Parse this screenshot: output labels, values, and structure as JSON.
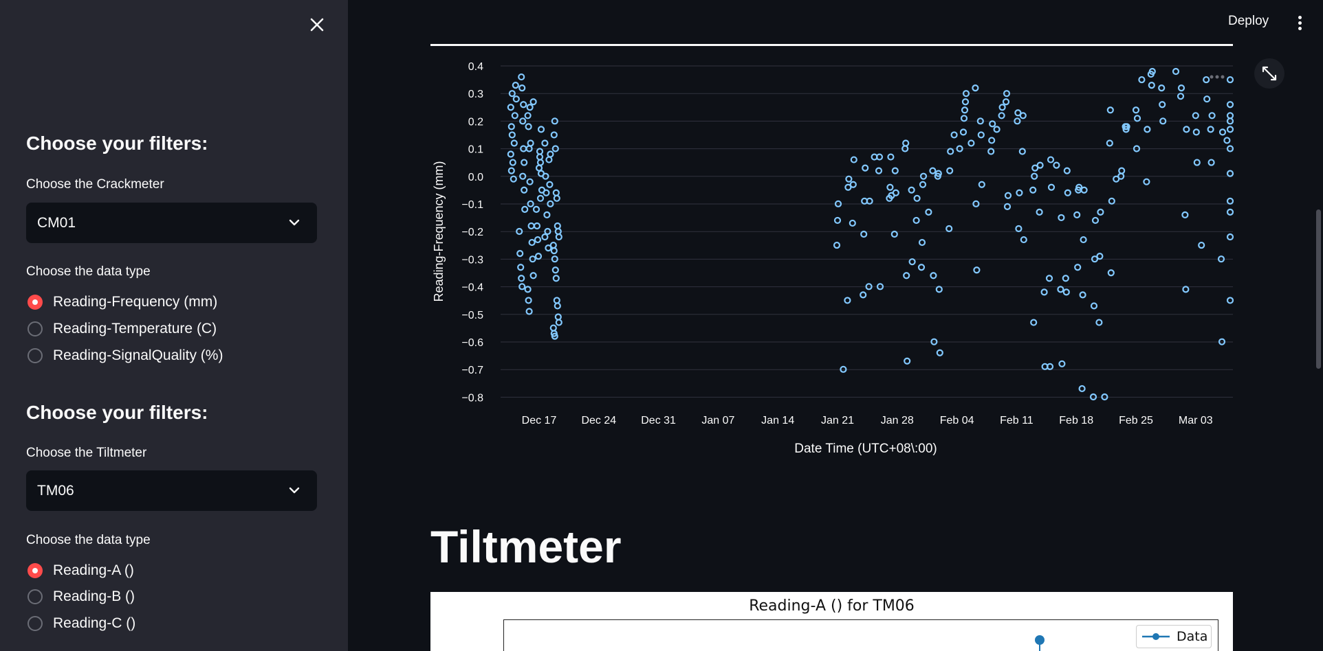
{
  "sidebar": {
    "sections": [
      {
        "heading": "Choose your filters:",
        "select_label": "Choose the Crackmeter",
        "select_value": "CM01",
        "type_label": "Choose the data type",
        "options": [
          "Reading-Frequency (mm)",
          "Reading-Temperature (C)",
          "Reading-SignalQuality (%)"
        ],
        "selected": 0
      },
      {
        "heading": "Choose your filters:",
        "select_label": "Choose the Tiltmeter",
        "select_value": "TM06",
        "type_label": "Choose the data type",
        "options": [
          "Reading-A ()",
          "Reading-B ()",
          "Reading-C ()"
        ],
        "selected": 0
      }
    ]
  },
  "header": {
    "deploy_label": "Deploy"
  },
  "main": {
    "section_title": "Tiltmeter",
    "tilt_chart": {
      "title": "Reading-A () for TM06",
      "legend": "Data"
    }
  },
  "chart_data": {
    "type": "scatter",
    "xlabel": "Date Time (UTC+08\\:00)",
    "ylabel": "Reading-Frequency (mm)",
    "x_ticks": [
      "Dec 17",
      "Dec 24",
      "Dec 31",
      "Jan 07",
      "Jan 14",
      "Jan 21",
      "Jan 28",
      "Feb 04",
      "Feb 11",
      "Feb 18",
      "Feb 25",
      "Mar 03"
    ],
    "y_ticks": [
      "0.4",
      "0.3",
      "0.2",
      "0.1",
      "0.0",
      "−0.1",
      "−0.2",
      "−0.3",
      "−0.4",
      "−0.5",
      "−0.6",
      "−0.7",
      "−0.8"
    ],
    "ylim": [
      -0.8,
      0.4
    ],
    "grid": true,
    "marker_color": "#83c9ff",
    "points": [
      [
        "2023-12-14",
        0.25
      ],
      [
        "2023-12-14",
        0.18
      ],
      [
        "2023-12-14",
        0.3
      ],
      [
        "2023-12-14",
        0.05
      ],
      [
        "2023-12-14",
        -0.01
      ],
      [
        "2023-12-14",
        0.12
      ],
      [
        "2023-12-14",
        0.22
      ],
      [
        "2023-12-14",
        0.33
      ],
      [
        "2023-12-14",
        0.28
      ],
      [
        "2023-12-14",
        0.08
      ],
      [
        "2023-12-14",
        0.02
      ],
      [
        "2023-12-14",
        0.15
      ],
      [
        "2023-12-15",
        0.36
      ],
      [
        "2023-12-15",
        0.32
      ],
      [
        "2023-12-15",
        0.2
      ],
      [
        "2023-12-15",
        0.1
      ],
      [
        "2023-12-15",
        -0.05
      ],
      [
        "2023-12-15",
        -0.12
      ],
      [
        "2023-12-15",
        -0.2
      ],
      [
        "2023-12-15",
        -0.28
      ],
      [
        "2023-12-15",
        -0.33
      ],
      [
        "2023-12-15",
        -0.37
      ],
      [
        "2023-12-15",
        -0.4
      ],
      [
        "2023-12-15",
        0.0
      ],
      [
        "2023-12-15",
        0.26
      ],
      [
        "2023-12-15",
        0.05
      ],
      [
        "2023-12-16",
        0.27
      ],
      [
        "2023-12-16",
        0.22
      ],
      [
        "2023-12-16",
        0.18
      ],
      [
        "2023-12-16",
        0.1
      ],
      [
        "2023-12-16",
        -0.02
      ],
      [
        "2023-12-16",
        -0.1
      ],
      [
        "2023-12-16",
        -0.18
      ],
      [
        "2023-12-16",
        -0.24
      ],
      [
        "2023-12-16",
        -0.3
      ],
      [
        "2023-12-16",
        -0.36
      ],
      [
        "2023-12-16",
        -0.41
      ],
      [
        "2023-12-16",
        -0.45
      ],
      [
        "2023-12-16",
        -0.49
      ],
      [
        "2023-12-16",
        0.25
      ],
      [
        "2023-12-16",
        0.12
      ],
      [
        "2023-12-17",
        0.09
      ],
      [
        "2023-12-17",
        0.05
      ],
      [
        "2023-12-17",
        0.01
      ],
      [
        "2023-12-17",
        -0.05
      ],
      [
        "2023-12-17",
        -0.12
      ],
      [
        "2023-12-17",
        -0.18
      ],
      [
        "2023-12-17",
        -0.23
      ],
      [
        "2023-12-17",
        -0.29
      ],
      [
        "2023-12-17",
        0.03
      ],
      [
        "2023-12-17",
        0.07
      ],
      [
        "2023-12-17",
        -0.08
      ],
      [
        "2023-12-17",
        0.17
      ],
      [
        "2023-12-18",
        0.08
      ],
      [
        "2023-12-18",
        0.12
      ],
      [
        "2023-12-18",
        0.0
      ],
      [
        "2023-12-18",
        -0.06
      ],
      [
        "2023-12-18",
        -0.14
      ],
      [
        "2023-12-18",
        -0.2
      ],
      [
        "2023-12-18",
        -0.26
      ],
      [
        "2023-12-18",
        0.06
      ],
      [
        "2023-12-18",
        -0.03
      ],
      [
        "2023-12-18",
        -0.1
      ],
      [
        "2023-12-18",
        -0.22
      ],
      [
        "2023-12-19",
        0.15
      ],
      [
        "2023-12-19",
        0.2
      ],
      [
        "2023-12-19",
        0.1
      ],
      [
        "2023-12-19",
        -0.06
      ],
      [
        "2023-12-19",
        -0.08
      ],
      [
        "2023-12-19",
        -0.18
      ],
      [
        "2023-12-19",
        -0.2
      ],
      [
        "2023-12-19",
        -0.22
      ],
      [
        "2023-12-19",
        -0.25
      ],
      [
        "2023-12-19",
        -0.27
      ],
      [
        "2023-12-19",
        -0.3
      ],
      [
        "2023-12-19",
        -0.34
      ],
      [
        "2023-12-19",
        -0.37
      ],
      [
        "2023-12-19",
        -0.45
      ],
      [
        "2023-12-19",
        -0.47
      ],
      [
        "2023-12-19",
        -0.51
      ],
      [
        "2023-12-19",
        -0.53
      ],
      [
        "2023-12-19",
        -0.55
      ],
      [
        "2023-12-19",
        -0.57
      ],
      [
        "2023-12-19",
        -0.58
      ],
      [
        "2023-01-21",
        -0.25
      ],
      [
        "2023-01-21",
        -0.16
      ],
      [
        "2023-01-21",
        -0.1
      ],
      [
        "2023-01-22",
        -0.45
      ],
      [
        "2023-01-22",
        -0.04
      ],
      [
        "2023-01-22",
        -0.01
      ],
      [
        "2023-01-22",
        -0.7
      ],
      [
        "2023-01-23",
        -0.17
      ],
      [
        "2023-01-23",
        -0.03
      ],
      [
        "2023-01-23",
        0.06
      ],
      [
        "2023-01-24",
        -0.43
      ],
      [
        "2023-01-24",
        -0.21
      ],
      [
        "2023-01-24",
        -0.09
      ],
      [
        "2023-01-24",
        0.03
      ],
      [
        "2023-01-25",
        0.07
      ],
      [
        "2023-01-25",
        -0.4
      ],
      [
        "2023-01-25",
        -0.09
      ],
      [
        "2023-01-26",
        0.02
      ],
      [
        "2023-01-26",
        0.07
      ],
      [
        "2023-01-26",
        -0.4
      ],
      [
        "2023-01-27",
        -0.08
      ],
      [
        "2023-01-27",
        -0.04
      ],
      [
        "2023-01-27",
        0.07
      ],
      [
        "2023-01-27",
        -0.07
      ],
      [
        "2023-01-28",
        -0.21
      ],
      [
        "2023-01-28",
        0.02
      ],
      [
        "2023-01-28",
        -0.06
      ],
      [
        "2023-01-29",
        0.1
      ],
      [
        "2023-01-29",
        0.12
      ],
      [
        "2023-01-29",
        -0.36
      ],
      [
        "2023-01-29",
        -0.67
      ],
      [
        "2023-01-30",
        -0.16
      ],
      [
        "2023-01-30",
        -0.08
      ],
      [
        "2023-01-30",
        -0.05
      ],
      [
        "2023-01-30",
        -0.31
      ],
      [
        "2023-01-31",
        -0.33
      ],
      [
        "2023-01-31",
        -0.24
      ],
      [
        "2023-01-31",
        -0.03
      ],
      [
        "2023-01-31",
        0.0
      ],
      [
        "2023-02-01",
        0.02
      ],
      [
        "2023-02-01",
        -0.36
      ],
      [
        "2023-02-01",
        -0.6
      ],
      [
        "2023-02-01",
        -0.13
      ],
      [
        "2023-02-02",
        0.0
      ],
      [
        "2023-02-02",
        0.01
      ],
      [
        "2023-02-02",
        -0.41
      ],
      [
        "2023-02-02",
        -0.64
      ],
      [
        "2023-02-03",
        -0.19
      ],
      [
        "2023-02-03",
        0.02
      ],
      [
        "2023-02-03",
        0.09
      ],
      [
        "2023-02-04",
        0.1
      ],
      [
        "2023-02-04",
        0.15
      ],
      [
        "2023-02-05",
        0.16
      ],
      [
        "2023-02-05",
        0.21
      ],
      [
        "2023-02-05",
        0.24
      ],
      [
        "2023-02-05",
        0.27
      ],
      [
        "2023-02-05",
        0.3
      ],
      [
        "2023-02-06",
        0.32
      ],
      [
        "2023-02-06",
        -0.1
      ],
      [
        "2023-02-06",
        -0.34
      ],
      [
        "2023-02-06",
        0.12
      ],
      [
        "2023-02-07",
        0.2
      ],
      [
        "2023-02-07",
        0.15
      ],
      [
        "2023-02-07",
        -0.03
      ],
      [
        "2023-02-08",
        0.09
      ],
      [
        "2023-02-08",
        0.13
      ],
      [
        "2023-02-08",
        0.19
      ],
      [
        "2023-02-09",
        0.22
      ],
      [
        "2023-02-09",
        0.25
      ],
      [
        "2023-02-09",
        0.17
      ],
      [
        "2023-02-10",
        0.27
      ],
      [
        "2023-02-10",
        0.3
      ],
      [
        "2023-02-10",
        -0.11
      ],
      [
        "2023-02-10",
        -0.07
      ],
      [
        "2023-02-11",
        0.2
      ],
      [
        "2023-02-11",
        0.23
      ],
      [
        "2023-02-11",
        -0.19
      ],
      [
        "2023-02-11",
        -0.06
      ],
      [
        "2023-02-12",
        0.09
      ],
      [
        "2023-02-12",
        0.22
      ],
      [
        "2023-02-12",
        -0.23
      ],
      [
        "2023-02-13",
        -0.05
      ],
      [
        "2023-02-13",
        -0.53
      ],
      [
        "2023-02-13",
        0.0
      ],
      [
        "2023-02-13",
        0.03
      ],
      [
        "2023-02-14",
        -0.42
      ],
      [
        "2023-02-14",
        -0.69
      ],
      [
        "2023-02-14",
        -0.13
      ],
      [
        "2023-02-14",
        0.04
      ],
      [
        "2023-02-15",
        -0.37
      ],
      [
        "2023-02-15",
        -0.69
      ],
      [
        "2023-02-15",
        0.06
      ],
      [
        "2023-02-15",
        -0.04
      ],
      [
        "2023-02-16",
        -0.41
      ],
      [
        "2023-02-16",
        -0.15
      ],
      [
        "2023-02-16",
        -0.68
      ],
      [
        "2023-02-16",
        0.04
      ],
      [
        "2023-02-17",
        -0.37
      ],
      [
        "2023-02-17",
        -0.42
      ],
      [
        "2023-02-17",
        0.02
      ],
      [
        "2023-02-17",
        -0.06
      ],
      [
        "2023-02-18",
        -0.14
      ],
      [
        "2023-02-18",
        -0.33
      ],
      [
        "2023-02-18",
        -0.05
      ],
      [
        "2023-02-18",
        -0.04
      ],
      [
        "2023-02-19",
        -0.77
      ],
      [
        "2023-02-19",
        -0.43
      ],
      [
        "2023-02-19",
        -0.23
      ],
      [
        "2023-02-19",
        -0.05
      ],
      [
        "2023-02-20",
        -0.8
      ],
      [
        "2023-02-20",
        -0.47
      ],
      [
        "2023-02-20",
        -0.3
      ],
      [
        "2023-02-20",
        -0.16
      ],
      [
        "2023-02-21",
        -0.8
      ],
      [
        "2023-02-21",
        -0.53
      ],
      [
        "2023-02-21",
        -0.29
      ],
      [
        "2023-02-21",
        -0.13
      ],
      [
        "2023-02-22",
        0.12
      ],
      [
        "2023-02-22",
        0.24
      ],
      [
        "2023-02-22",
        -0.35
      ],
      [
        "2023-02-22",
        -0.09
      ],
      [
        "2023-02-23",
        0.0
      ],
      [
        "2023-02-23",
        0.02
      ],
      [
        "2023-02-23",
        -0.01
      ],
      [
        "2023-02-24",
        0.18
      ],
      [
        "2023-02-24",
        0.17
      ],
      [
        "2023-02-24",
        0.18
      ],
      [
        "2023-02-25",
        0.24
      ],
      [
        "2023-02-25",
        0.1
      ],
      [
        "2023-02-25",
        0.21
      ],
      [
        "2023-02-26",
        -0.02
      ],
      [
        "2023-02-26",
        0.17
      ],
      [
        "2023-02-26",
        0.35
      ],
      [
        "2023-02-27",
        0.37
      ],
      [
        "2023-02-27",
        0.33
      ],
      [
        "2023-02-27",
        0.38
      ],
      [
        "2023-02-28",
        0.32
      ],
      [
        "2023-02-28",
        0.26
      ],
      [
        "2023-02-28",
        0.2
      ],
      [
        "2023-03-01",
        0.29
      ],
      [
        "2023-03-01",
        0.32
      ],
      [
        "2023-03-01",
        0.38
      ],
      [
        "2023-03-02",
        -0.14
      ],
      [
        "2023-03-02",
        -0.41
      ],
      [
        "2023-03-02",
        0.17
      ],
      [
        "2023-03-03",
        0.22
      ],
      [
        "2023-03-03",
        0.16
      ],
      [
        "2023-03-03",
        0.05
      ],
      [
        "2023-03-04",
        0.35
      ],
      [
        "2023-03-04",
        0.28
      ],
      [
        "2023-03-04",
        -0.25
      ],
      [
        "2023-03-05",
        0.17
      ],
      [
        "2023-03-05",
        0.05
      ],
      [
        "2023-03-05",
        0.22
      ],
      [
        "2023-03-06",
        -0.3
      ],
      [
        "2023-03-06",
        -0.6
      ],
      [
        "2023-03-06",
        0.16
      ],
      [
        "2023-03-07",
        -0.45
      ],
      [
        "2023-03-07",
        -0.13
      ],
      [
        "2023-03-07",
        0.13
      ],
      [
        "2023-03-08",
        0.35
      ],
      [
        "2023-03-08",
        0.26
      ],
      [
        "2023-03-08",
        0.1
      ],
      [
        "2023-03-09",
        0.01
      ],
      [
        "2023-03-09",
        -0.09
      ],
      [
        "2023-03-09",
        0.22
      ],
      [
        "2023-03-10",
        0.17
      ],
      [
        "2023-03-10",
        -0.22
      ],
      [
        "2023-03-10",
        0.2
      ]
    ]
  }
}
